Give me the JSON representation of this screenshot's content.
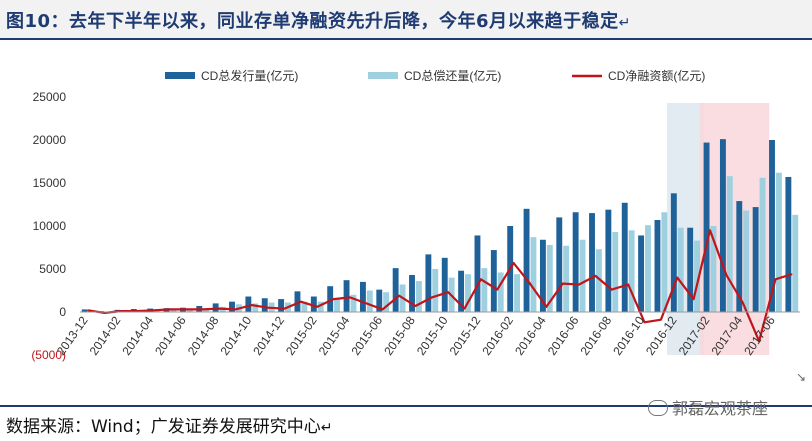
{
  "header": {
    "title": "图10：去年下半年以来，同业存单净融资先升后降，今年6月以来趋于稳定"
  },
  "footer": {
    "source": "数据来源：Wind；广发证券发展研究中心",
    "watermark": "郭磊宏观茶座"
  },
  "colors": {
    "issue": "#1f6299",
    "repay": "#9fd0e0",
    "net": "#c0151b",
    "shade_blue": "#dde6f0",
    "shade_red": "#f8d7da",
    "axis_text": "#333333"
  },
  "chart_data": {
    "type": "bar+line",
    "title": "",
    "xlabel": "",
    "ylabel": "",
    "ylim": [
      -5000,
      25000
    ],
    "yticks": [
      25000,
      20000,
      15000,
      10000,
      5000,
      0,
      -5000
    ],
    "ytick_labels": [
      "25000",
      "20000",
      "15000",
      "10000",
      "5000",
      "0",
      "(5000)"
    ],
    "legend_position": "top",
    "categories": [
      "2013-12",
      "2014-01",
      "2014-02",
      "2014-03",
      "2014-04",
      "2014-05",
      "2014-06",
      "2014-07",
      "2014-08",
      "2014-09",
      "2014-10",
      "2014-11",
      "2014-12",
      "2015-01",
      "2015-02",
      "2015-03",
      "2015-04",
      "2015-05",
      "2015-06",
      "2015-07",
      "2015-08",
      "2015-09",
      "2015-10",
      "2015-11",
      "2015-12",
      "2016-01",
      "2016-02",
      "2016-03",
      "2016-04",
      "2016-05",
      "2016-06",
      "2016-07",
      "2016-08",
      "2016-09",
      "2016-10",
      "2016-11",
      "2016-12",
      "2017-01",
      "2017-02",
      "2017-03",
      "2017-04",
      "2017-05",
      "2017-06",
      "2017-07"
    ],
    "xtick_labels": [
      "2013-12",
      "2014-02",
      "2014-04",
      "2014-06",
      "2014-08",
      "2014-10",
      "2014-12",
      "2015-02",
      "2015-04",
      "2015-06",
      "2015-08",
      "2015-10",
      "2015-12",
      "2016-02",
      "2016-04",
      "2016-06",
      "2016-08",
      "2016-10",
      "2016-12",
      "2017-02",
      "2017-04",
      "2017-06"
    ],
    "series": [
      {
        "name": "CD总发行量(亿元)",
        "type": "bar",
        "values": [
          300,
          100,
          250,
          350,
          400,
          450,
          500,
          700,
          1000,
          1200,
          1800,
          1600,
          1500,
          2400,
          1800,
          3000,
          3700,
          3500,
          2600,
          5100,
          4300,
          6700,
          6300,
          4800,
          8900,
          7200,
          10000,
          12000,
          8400,
          11000,
          11600,
          11500,
          11900,
          12700,
          8900,
          10700,
          13800,
          9800,
          19700,
          20100,
          12900,
          12200,
          20000,
          15700
        ]
      },
      {
        "name": "CD总偿还量(亿元)",
        "type": "bar",
        "values": [
          100,
          50,
          150,
          250,
          200,
          200,
          300,
          400,
          600,
          900,
          1000,
          1100,
          1100,
          1200,
          1200,
          1500,
          2000,
          2500,
          2300,
          3200,
          3600,
          5000,
          4000,
          4400,
          5100,
          4600,
          4400,
          8700,
          7800,
          7700,
          8400,
          7300,
          9300,
          9500,
          10100,
          11600,
          9800,
          8300,
          10000,
          15800,
          11800,
          15600,
          16200,
          11300
        ]
      },
      {
        "name": "CD净融资额(亿元)",
        "type": "line",
        "values": [
          200,
          -100,
          100,
          100,
          200,
          300,
          300,
          300,
          400,
          300,
          800,
          500,
          400,
          1200,
          600,
          1500,
          1700,
          1000,
          300,
          1900,
          700,
          1700,
          2300,
          400,
          3800,
          2600,
          5700,
          3300,
          600,
          3300,
          3200,
          4200,
          2600,
          3200,
          -1200,
          -900,
          4000,
          1500,
          9500,
          4300,
          1100,
          -3400,
          3800,
          4400
        ]
      }
    ],
    "shaded_ranges": [
      {
        "from": "2016-12",
        "to": "2017-01",
        "color": "blue"
      },
      {
        "from": "2017-02",
        "to": "2017-05",
        "color": "red"
      }
    ]
  }
}
